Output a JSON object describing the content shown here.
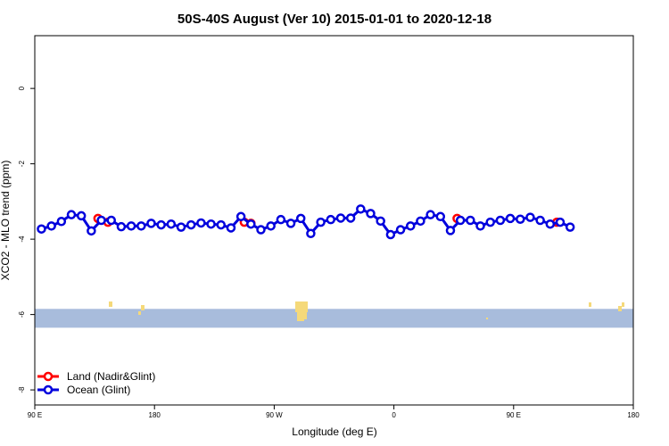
{
  "chart_data": {
    "type": "line",
    "title": "50S-40S August (Ver 10)   2015-01-01 to 2020-12-18",
    "xlabel": "Longitude (deg E)",
    "ylabel": "XCO2 - MLO trend (ppm)",
    "xlim": [
      90,
      450
    ],
    "ylim": [
      -8.4,
      1.4
    ],
    "x_ticks": [
      {
        "value": 90,
        "label": "90 E"
      },
      {
        "value": 180,
        "label": "180"
      },
      {
        "value": 270,
        "label": "90 W"
      },
      {
        "value": 360,
        "label": "0"
      },
      {
        "value": 450,
        "label": "90 E"
      },
      {
        "value": 540,
        "label": "180"
      }
    ],
    "y_ticks": [
      {
        "value": 0,
        "label": "0"
      },
      {
        "value": -2,
        "label": "-2"
      },
      {
        "value": -4,
        "label": "-4"
      },
      {
        "value": -6,
        "label": "-6"
      },
      {
        "value": -8,
        "label": "-8"
      }
    ],
    "legend_position": "bottom-left",
    "map_strip": {
      "ocean_color": "#a8bcdc",
      "land_color": "#f5d97a",
      "y_range": [
        -5.85,
        -6.35
      ]
    },
    "series": [
      {
        "name": "Land (Nadir&Glint)",
        "color": "#ff0000",
        "connected": false,
        "x": [
          137.5,
          145,
          247.5,
          252.5,
          407.5,
          482.5
        ],
        "y": [
          -3.45,
          -3.55,
          -3.55,
          -3.58,
          -3.45,
          -3.55
        ]
      },
      {
        "name": "Ocean (Glint)",
        "color": "#0000dd",
        "connected": true,
        "x": [
          95,
          102.5,
          110,
          117.5,
          125,
          132.5,
          140,
          147.5,
          155,
          162.5,
          170,
          177.5,
          185,
          192.5,
          200,
          207.5,
          215,
          222.5,
          230,
          237.5,
          245,
          252.5,
          260,
          267.5,
          275,
          282.5,
          290,
          297.5,
          305,
          312.5,
          320,
          327.5,
          335,
          342.5,
          350,
          357.5,
          365,
          372.5,
          380,
          387.5,
          395,
          402.5,
          410,
          417.5,
          425,
          432.5,
          440,
          447.5,
          455,
          462.5,
          470,
          477.5,
          485,
          492.5
        ],
        "y": [
          -3.73,
          -3.65,
          -3.53,
          -3.35,
          -3.38,
          -3.78,
          -3.5,
          -3.5,
          -3.67,
          -3.65,
          -3.65,
          -3.58,
          -3.62,
          -3.6,
          -3.68,
          -3.62,
          -3.57,
          -3.6,
          -3.62,
          -3.7,
          -3.4,
          -3.6,
          -3.75,
          -3.65,
          -3.48,
          -3.58,
          -3.45,
          -3.85,
          -3.55,
          -3.48,
          -3.44,
          -3.44,
          -3.2,
          -3.32,
          -3.52,
          -3.88,
          -3.75,
          -3.65,
          -3.52,
          -3.35,
          -3.4,
          -3.77,
          -3.5,
          -3.5,
          -3.65,
          -3.55,
          -3.5,
          -3.45,
          -3.47,
          -3.42,
          -3.5,
          -3.6,
          -3.55,
          -3.68
        ]
      }
    ]
  }
}
